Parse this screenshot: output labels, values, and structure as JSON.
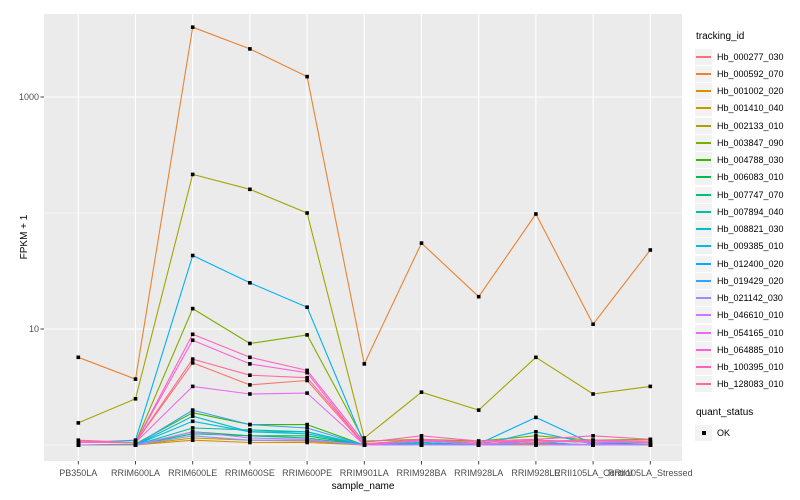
{
  "legend": {
    "tracking_id_title": "tracking_id",
    "quant_status_title": "quant_status",
    "quant_status_items": [
      {
        "label": "OK"
      }
    ]
  },
  "style": {
    "panel_bg": "#EBEBEB",
    "gridline": "#FFFFFF",
    "tick_text": "#4D4D4D",
    "marker": "#000000",
    "legend_key_bg": "#F2F2F2"
  },
  "chart_data": {
    "type": "line",
    "title": "",
    "xlabel": "sample_name",
    "ylabel": "FPKM + 1",
    "y_scale": "log10",
    "ylim": [
      0.7,
      5200
    ],
    "grid": "on",
    "legend_position": "right",
    "point_marker": "filled-black-square",
    "y_ticks": [
      {
        "value": 1000,
        "label": "1000"
      },
      {
        "value": 10,
        "label": "10"
      }
    ],
    "y_minor_gridlines": [
      1,
      100
    ],
    "categories": [
      "PB350LA",
      "RRIM600LA",
      "RRIM600LE",
      "RRIM600SE",
      "RRIM600PE",
      "RRIM901LA",
      "RRIM928BA",
      "RRIM928LA",
      "RRIM928LE",
      "RRII105LA_Control",
      "RRII105LA_Stressed"
    ],
    "series": [
      {
        "name": "Hb_000277_030",
        "color": "#F8766D",
        "values": [
          1.05,
          1.05,
          5.1,
          3.3,
          3.6,
          1.0,
          1.1,
          1.02,
          1.05,
          1.1,
          1.05
        ]
      },
      {
        "name": "Hb_000592_070",
        "color": "#EA8331",
        "values": [
          5.7,
          3.7,
          4000,
          2600,
          1500,
          5.0,
          55,
          19,
          98,
          11,
          48
        ]
      },
      {
        "name": "Hb_001002_020",
        "color": "#D89000",
        "values": [
          1.0,
          1.0,
          1.1,
          1.05,
          1.05,
          1.0,
          1.0,
          1.0,
          1.02,
          1.0,
          1.0
        ]
      },
      {
        "name": "Hb_001410_040",
        "color": "#C09B00",
        "values": [
          1.0,
          1.0,
          1.15,
          1.1,
          1.08,
          1.0,
          1.02,
          1.0,
          1.02,
          1.0,
          1.02
        ]
      },
      {
        "name": "Hb_002133_010",
        "color": "#A3A500",
        "values": [
          1.55,
          2.5,
          215,
          160,
          100,
          1.15,
          2.85,
          2.0,
          5.7,
          2.75,
          3.2
        ]
      },
      {
        "name": "Hb_003847_090",
        "color": "#7CAE00",
        "values": [
          1.05,
          1.05,
          15,
          7.5,
          8.9,
          1.08,
          1.12,
          1.08,
          1.2,
          1.1,
          1.12
        ]
      },
      {
        "name": "Hb_004788_030",
        "color": "#39B600",
        "values": [
          1.0,
          1.02,
          1.9,
          1.5,
          1.5,
          1.0,
          1.05,
          1.0,
          1.1,
          1.05,
          1.05
        ]
      },
      {
        "name": "Hb_006083_010",
        "color": "#00BB4E",
        "values": [
          1.0,
          1.0,
          1.3,
          1.2,
          1.2,
          1.0,
          1.0,
          1.0,
          1.05,
          1.0,
          1.0
        ]
      },
      {
        "name": "Hb_007747_070",
        "color": "#00BF7D",
        "values": [
          1.0,
          1.0,
          1.25,
          1.2,
          1.15,
          1.0,
          1.0,
          1.0,
          1.0,
          1.0,
          1.0
        ]
      },
      {
        "name": "Hb_007894_040",
        "color": "#00C1A3",
        "values": [
          1.0,
          1.0,
          1.4,
          1.35,
          1.3,
          1.0,
          1.05,
          1.0,
          1.05,
          1.0,
          1.0
        ]
      },
      {
        "name": "Hb_008821_030",
        "color": "#00BFC4",
        "values": [
          1.0,
          1.0,
          1.77,
          1.3,
          1.3,
          1.0,
          1.05,
          1.0,
          1.1,
          1.05,
          1.0
        ]
      },
      {
        "name": "Hb_009385_010",
        "color": "#00BAE0",
        "values": [
          1.0,
          1.0,
          1.6,
          1.3,
          1.25,
          1.0,
          1.02,
          1.0,
          1.3,
          1.02,
          1.0
        ]
      },
      {
        "name": "Hb_012400_020",
        "color": "#00B0F6",
        "values": [
          1.05,
          1.1,
          43,
          25,
          15.4,
          1.02,
          1.1,
          1.02,
          1.73,
          1.02,
          1.05
        ]
      },
      {
        "name": "Hb_019429_020",
        "color": "#35A2FF",
        "values": [
          1.0,
          1.0,
          2.0,
          1.5,
          1.4,
          1.0,
          1.02,
          1.0,
          1.05,
          1.0,
          1.0
        ]
      },
      {
        "name": "Hb_021142_030",
        "color": "#9590FF",
        "values": [
          1.0,
          1.0,
          1.2,
          1.1,
          1.1,
          1.0,
          1.0,
          1.0,
          1.0,
          1.02,
          1.0
        ]
      },
      {
        "name": "Hb_046610_010",
        "color": "#C77CFF",
        "values": [
          1.0,
          1.0,
          1.3,
          1.15,
          1.12,
          1.0,
          1.0,
          1.0,
          1.0,
          1.0,
          1.0
        ]
      },
      {
        "name": "Hb_054165_010",
        "color": "#E76BF3",
        "values": [
          1.05,
          1.05,
          3.2,
          2.75,
          2.8,
          1.0,
          1.08,
          1.02,
          1.05,
          1.08,
          1.05
        ]
      },
      {
        "name": "Hb_064885_010",
        "color": "#FA62DB",
        "values": [
          1.05,
          1.05,
          8.0,
          5.0,
          4.2,
          1.0,
          1.1,
          1.05,
          1.1,
          1.05,
          1.05
        ]
      },
      {
        "name": "Hb_100395_010",
        "color": "#FF62BC",
        "values": [
          1.1,
          1.05,
          9.0,
          5.7,
          4.4,
          1.05,
          1.2,
          1.08,
          1.12,
          1.2,
          1.12
        ]
      },
      {
        "name": "Hb_128083_010",
        "color": "#FF6A98",
        "values": [
          1.08,
          1.05,
          5.5,
          4.0,
          3.8,
          1.02,
          1.12,
          1.05,
          1.08,
          1.1,
          1.08
        ]
      }
    ],
    "quant_status_values": "OK"
  }
}
